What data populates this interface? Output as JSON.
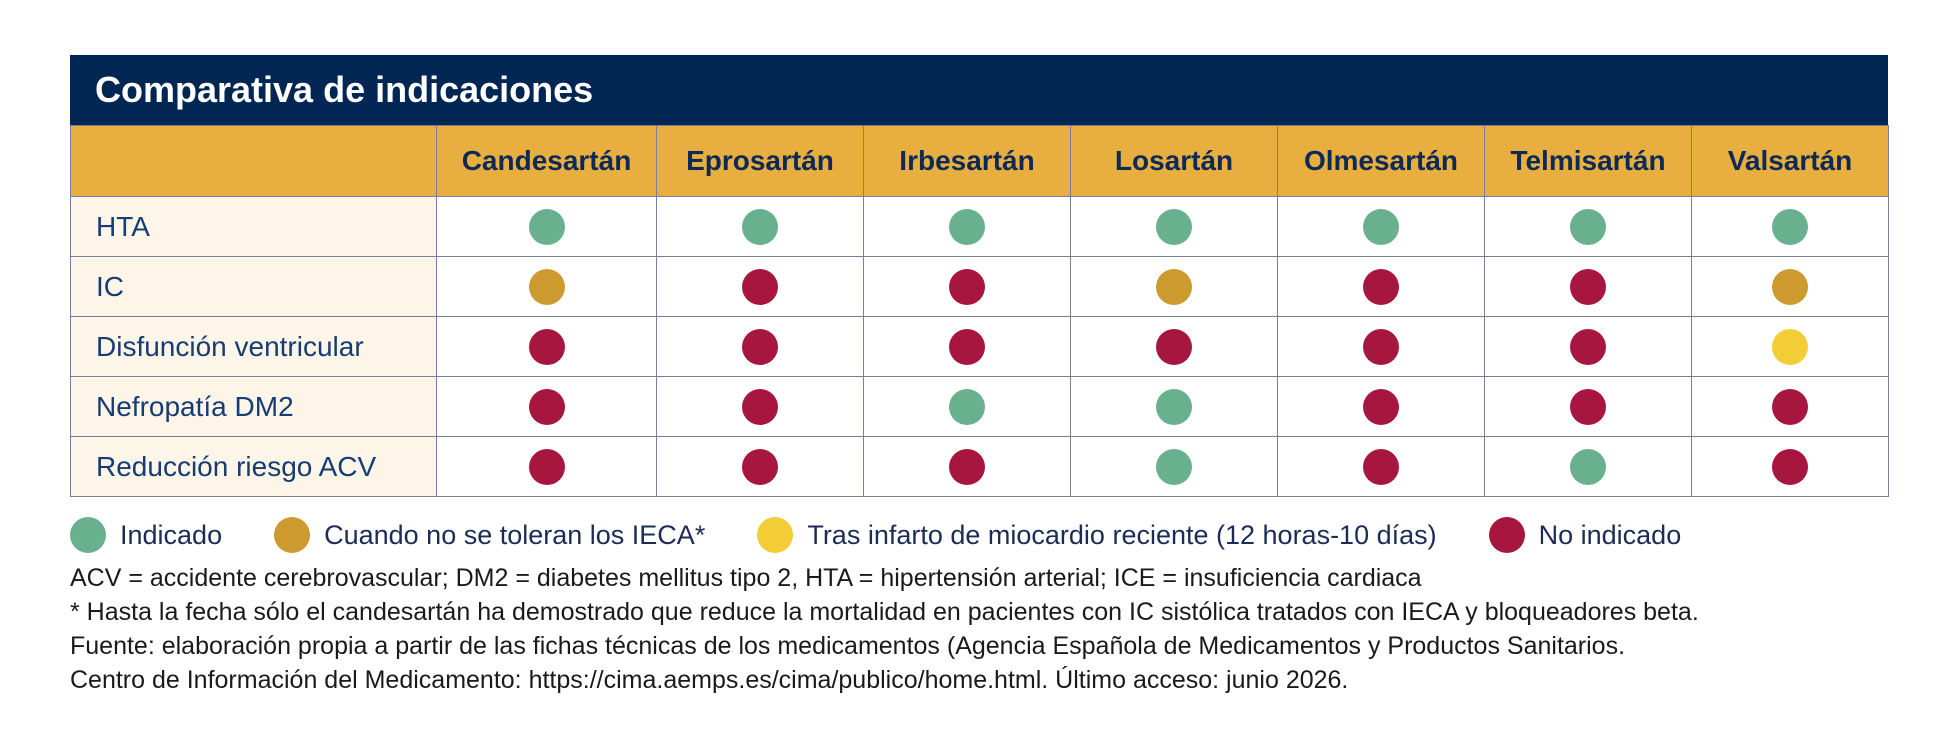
{
  "title": "Comparativa de indicaciones",
  "colors": {
    "header_bg": "#012654",
    "subheader_bg": "#e8ae40",
    "rowlabel_bg": "#fcf5e8",
    "indicado": "#69b08f",
    "no_toleran_ieca": "#cc9a2e",
    "tras_infarto": "#f2cd35",
    "no_indicado": "#a6163f"
  },
  "columns": [
    "Candesartán",
    "Eprosartán",
    "Irbesartán",
    "Losartán",
    "Olmesartán",
    "Telmisartán",
    "Valsartán"
  ],
  "rows": [
    {
      "label": "HTA",
      "values": [
        "indicado",
        "indicado",
        "indicado",
        "indicado",
        "indicado",
        "indicado",
        "indicado"
      ]
    },
    {
      "label": "IC",
      "values": [
        "no_toleran_ieca",
        "no_indicado",
        "no_indicado",
        "no_toleran_ieca",
        "no_indicado",
        "no_indicado",
        "no_toleran_ieca"
      ]
    },
    {
      "label": "Disfunción ventricular",
      "values": [
        "no_indicado",
        "no_indicado",
        "no_indicado",
        "no_indicado",
        "no_indicado",
        "no_indicado",
        "tras_infarto"
      ]
    },
    {
      "label": "Nefropatía DM2",
      "values": [
        "no_indicado",
        "no_indicado",
        "indicado",
        "indicado",
        "no_indicado",
        "no_indicado",
        "no_indicado"
      ]
    },
    {
      "label": "Reducción riesgo ACV",
      "values": [
        "no_indicado",
        "no_indicado",
        "no_indicado",
        "indicado",
        "no_indicado",
        "indicado",
        "no_indicado"
      ]
    }
  ],
  "legend": [
    {
      "key": "indicado",
      "label": "Indicado"
    },
    {
      "key": "no_toleran_ieca",
      "label": "Cuando no se toleran los IECA*"
    },
    {
      "key": "tras_infarto",
      "label": "Tras infarto de miocardio reciente (12 horas-10 días)"
    },
    {
      "key": "no_indicado",
      "label": "No indicado"
    }
  ],
  "notes": {
    "abbreviations": "ACV = accidente cerebrovascular; DM2 = diabetes mellitus tipo 2, HTA = hipertensión arterial; ICE = insuficiencia cardiaca",
    "footnote": "* Hasta la fecha sólo el candesartán ha demostrado que reduce la mortalidad en pacientes con IC sistólica tratados con IECA y bloqueadores beta.",
    "source_line1": "Fuente: elaboración propia a partir de las fichas técnicas de los medicamentos (Agencia Española de Medicamentos y Productos Sanitarios.",
    "source_line2": "Centro de Información del Medicamento: https://cima.aemps.es/cima/publico/home.html. Último acceso: junio 2026."
  }
}
